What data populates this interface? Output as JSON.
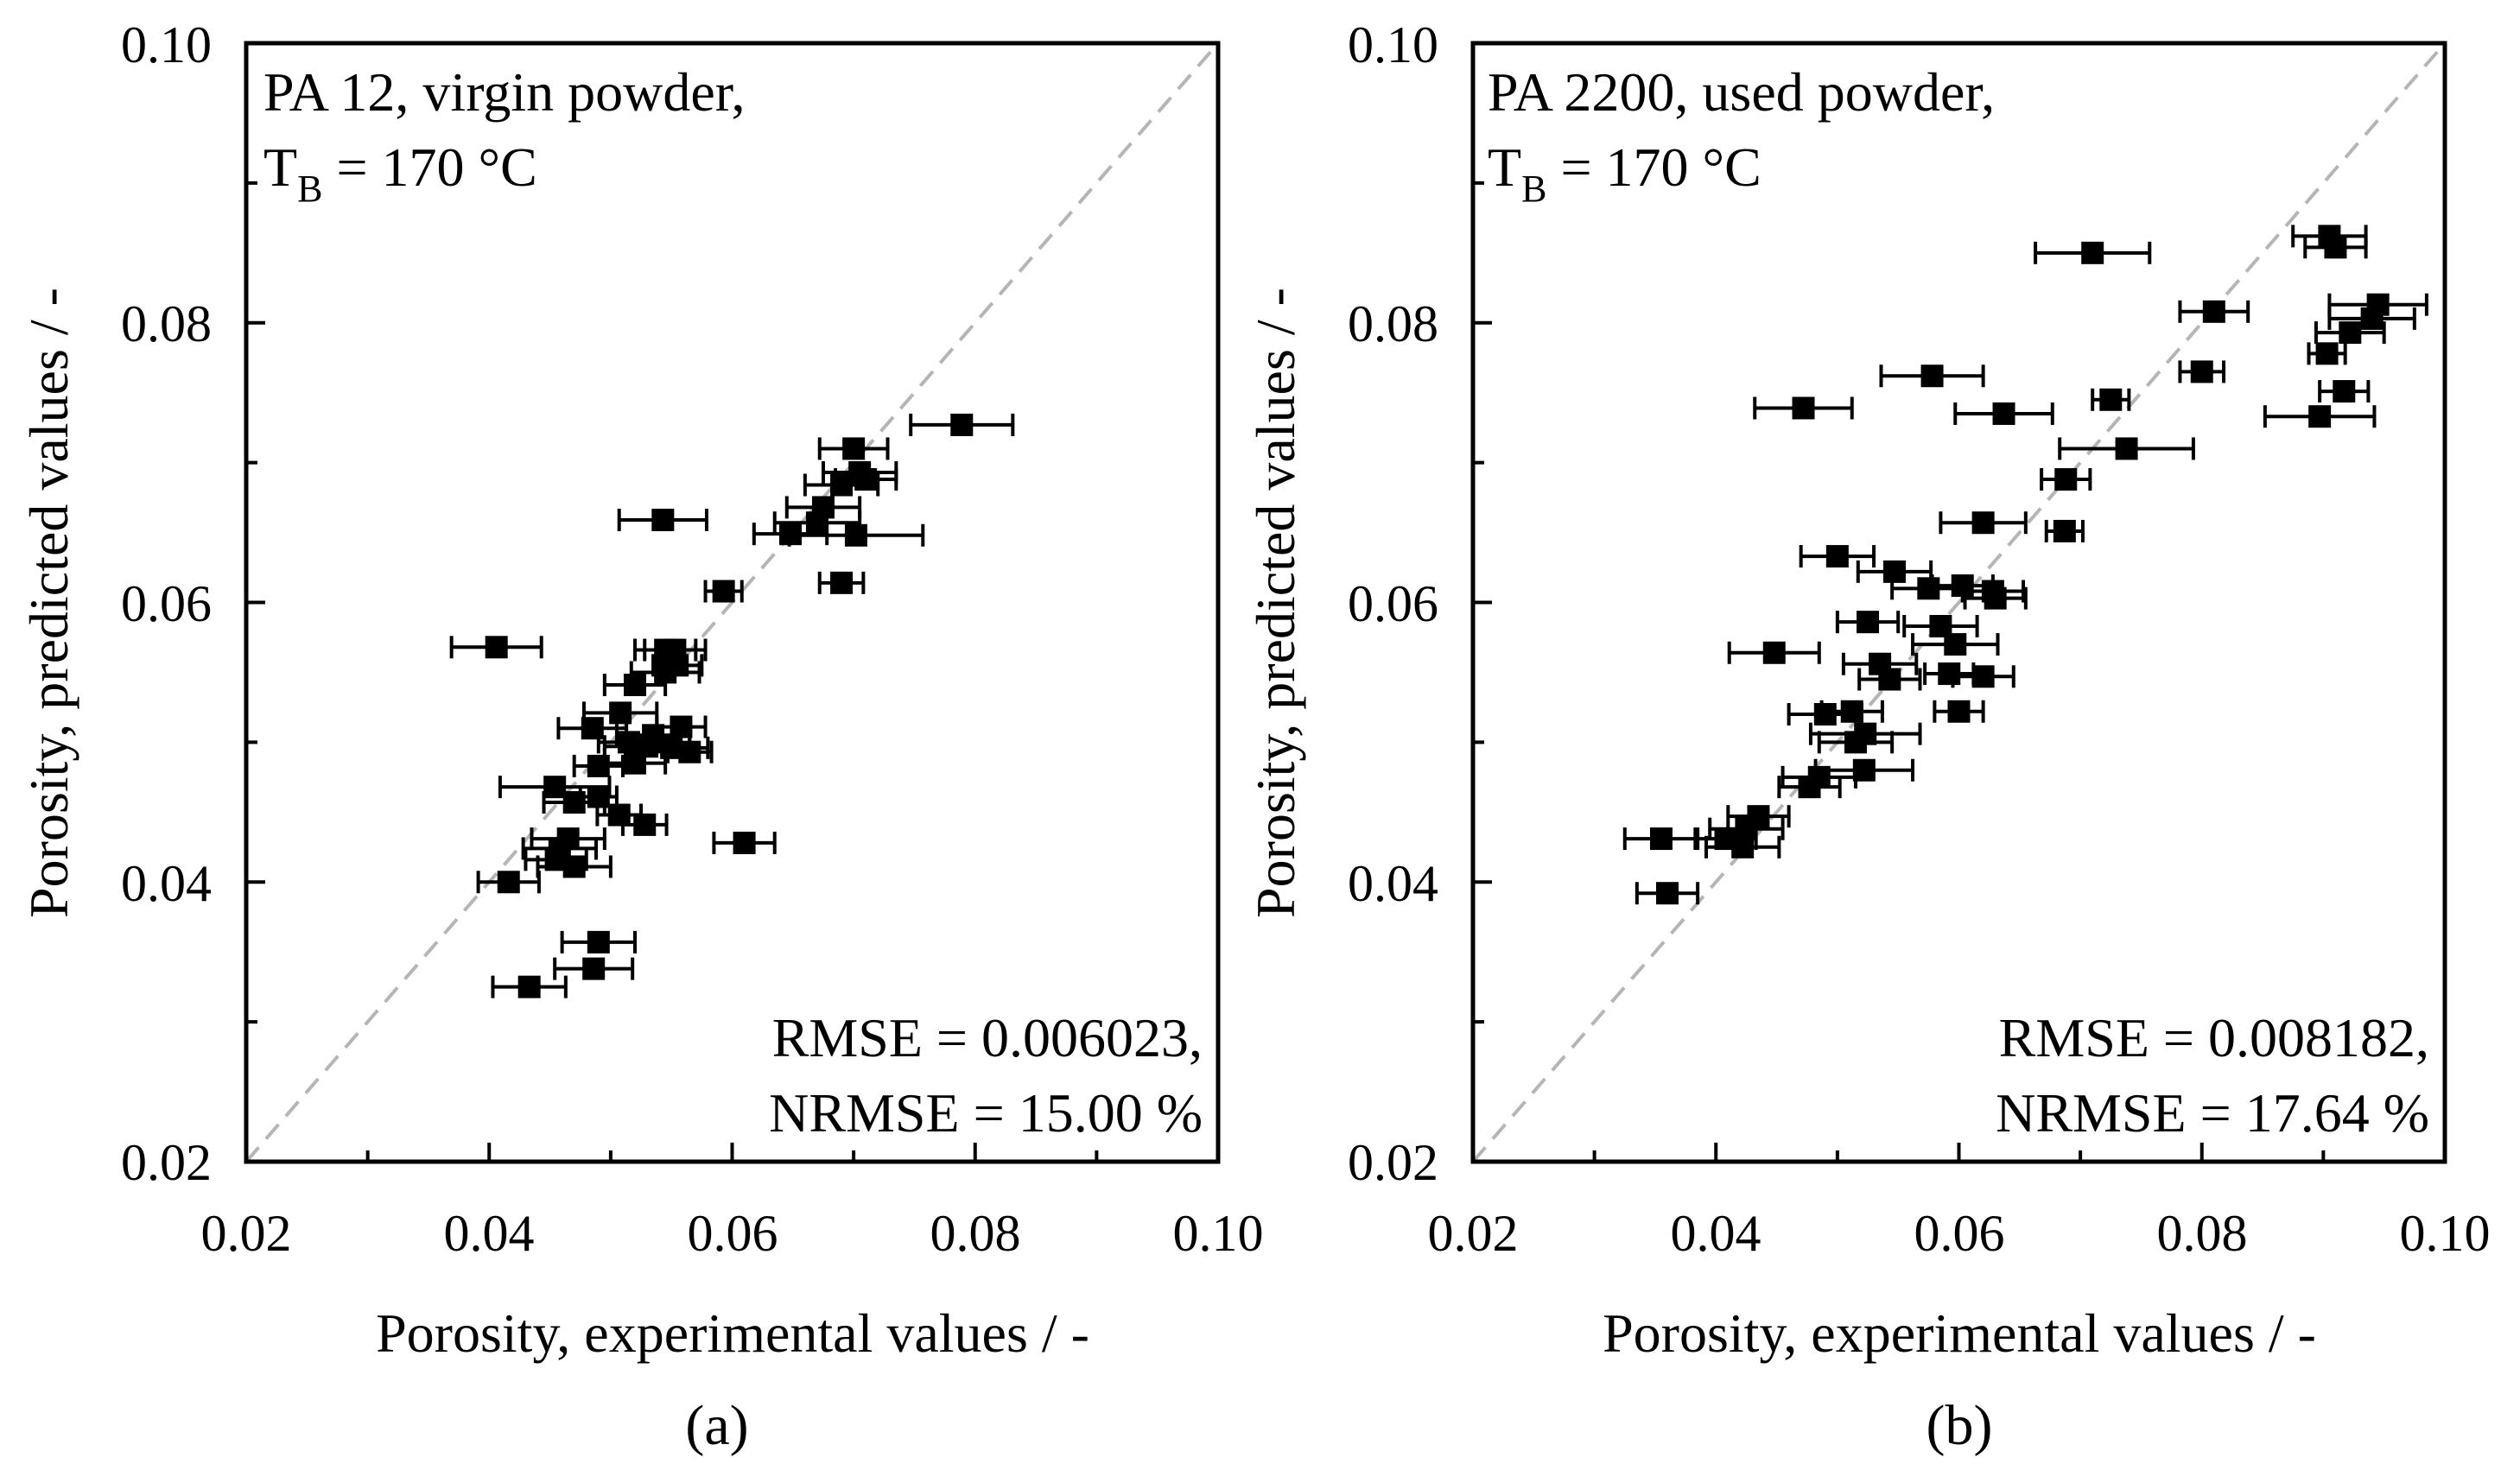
{
  "chart_data": [
    {
      "id": "a",
      "type": "scatter",
      "panel_label": "(a)",
      "title_line1": "PA 12, virgin powder,",
      "title_line2": {
        "main": "T",
        "sub": "B",
        "rest": " = 170 °C"
      },
      "xlabel": "Porosity, experimental values / -",
      "ylabel": "Porosity, predicted values / -",
      "xlim": [
        0.02,
        0.1
      ],
      "ylim": [
        0.02,
        0.1
      ],
      "xticks": [
        "0.02",
        "0.04",
        "0.06",
        "0.08",
        "0.10"
      ],
      "yticks": [
        "0.02",
        "0.04",
        "0.06",
        "0.08",
        "0.10"
      ],
      "reference_line": "y = x",
      "rmse_text": "RMSE = 0.006023,",
      "nrmse_text": "NRMSE = 15.00 %",
      "points": [
        {
          "x": 0.0789,
          "y": 0.0727,
          "xerr": 0.0042
        },
        {
          "x": 0.07,
          "y": 0.071,
          "xerr": 0.0028
        },
        {
          "x": 0.0705,
          "y": 0.0693,
          "xerr": 0.003
        },
        {
          "x": 0.071,
          "y": 0.0688,
          "xerr": 0.0025
        },
        {
          "x": 0.069,
          "y": 0.0684,
          "xerr": 0.003
        },
        {
          "x": 0.0675,
          "y": 0.0668,
          "xerr": 0.003
        },
        {
          "x": 0.067,
          "y": 0.0657,
          "xerr": 0.0035
        },
        {
          "x": 0.0648,
          "y": 0.0649,
          "xerr": 0.003
        },
        {
          "x": 0.0702,
          "y": 0.0648,
          "xerr": 0.0055
        },
        {
          "x": 0.0543,
          "y": 0.0659,
          "xerr": 0.0036
        },
        {
          "x": 0.069,
          "y": 0.0614,
          "xerr": 0.0018
        },
        {
          "x": 0.0593,
          "y": 0.0608,
          "xerr": 0.0015
        },
        {
          "x": 0.0406,
          "y": 0.0568,
          "xerr": 0.0037
        },
        {
          "x": 0.0545,
          "y": 0.0566,
          "xerr": 0.0025
        },
        {
          "x": 0.0553,
          "y": 0.0566,
          "xerr": 0.0025
        },
        {
          "x": 0.0555,
          "y": 0.0555,
          "xerr": 0.002
        },
        {
          "x": 0.0545,
          "y": 0.055,
          "xerr": 0.0028
        },
        {
          "x": 0.052,
          "y": 0.0541,
          "xerr": 0.0025
        },
        {
          "x": 0.0508,
          "y": 0.0521,
          "xerr": 0.003
        },
        {
          "x": 0.0485,
          "y": 0.051,
          "xerr": 0.0028
        },
        {
          "x": 0.0558,
          "y": 0.0511,
          "xerr": 0.002
        },
        {
          "x": 0.0535,
          "y": 0.0505,
          "xerr": 0.003
        },
        {
          "x": 0.0515,
          "y": 0.05,
          "xerr": 0.0025
        },
        {
          "x": 0.053,
          "y": 0.0497,
          "xerr": 0.0035
        },
        {
          "x": 0.055,
          "y": 0.0496,
          "xerr": 0.003
        },
        {
          "x": 0.0565,
          "y": 0.0493,
          "xerr": 0.0018
        },
        {
          "x": 0.052,
          "y": 0.0485,
          "xerr": 0.0025
        },
        {
          "x": 0.049,
          "y": 0.0483,
          "xerr": 0.002
        },
        {
          "x": 0.0454,
          "y": 0.0468,
          "xerr": 0.0045
        },
        {
          "x": 0.047,
          "y": 0.0457,
          "xerr": 0.0025
        },
        {
          "x": 0.049,
          "y": 0.0461,
          "xerr": 0.0015
        },
        {
          "x": 0.0507,
          "y": 0.0448,
          "xerr": 0.0018
        },
        {
          "x": 0.0528,
          "y": 0.0441,
          "xerr": 0.0018
        },
        {
          "x": 0.061,
          "y": 0.0428,
          "xerr": 0.0025
        },
        {
          "x": 0.0465,
          "y": 0.0431,
          "xerr": 0.003
        },
        {
          "x": 0.0458,
          "y": 0.0424,
          "xerr": 0.003
        },
        {
          "x": 0.0455,
          "y": 0.0416,
          "xerr": 0.0025
        },
        {
          "x": 0.047,
          "y": 0.0411,
          "xerr": 0.003
        },
        {
          "x": 0.0416,
          "y": 0.04,
          "xerr": 0.0025
        },
        {
          "x": 0.049,
          "y": 0.0357,
          "xerr": 0.003
        },
        {
          "x": 0.0486,
          "y": 0.0338,
          "xerr": 0.0032
        },
        {
          "x": 0.0433,
          "y": 0.0325,
          "xerr": 0.003
        }
      ]
    },
    {
      "id": "b",
      "type": "scatter",
      "panel_label": "(b)",
      "title_line1": "PA 2200, used powder,",
      "title_line2": {
        "main": "T",
        "sub": "B",
        "rest": " = 170 °C"
      },
      "xlabel": "Porosity, experimental values / -",
      "ylabel": "Porosity, predicted values / -",
      "xlim": [
        0.02,
        0.1
      ],
      "ylim": [
        0.02,
        0.1
      ],
      "xticks": [
        "0.02",
        "0.04",
        "0.06",
        "0.08",
        "0.10"
      ],
      "yticks": [
        "0.02",
        "0.04",
        "0.06",
        "0.08",
        "0.10"
      ],
      "reference_line": "y = x",
      "rmse_text": "RMSE = 0.008182,",
      "nrmse_text": "NRMSE = 17.64 %",
      "points": [
        {
          "x": 0.0905,
          "y": 0.0862,
          "xerr": 0.003
        },
        {
          "x": 0.091,
          "y": 0.0854,
          "xerr": 0.0025
        },
        {
          "x": 0.071,
          "y": 0.085,
          "xerr": 0.0047
        },
        {
          "x": 0.0945,
          "y": 0.0813,
          "xerr": 0.004
        },
        {
          "x": 0.081,
          "y": 0.0808,
          "xerr": 0.0028
        },
        {
          "x": 0.094,
          "y": 0.0803,
          "xerr": 0.0035
        },
        {
          "x": 0.0922,
          "y": 0.0793,
          "xerr": 0.0028
        },
        {
          "x": 0.0903,
          "y": 0.0778,
          "xerr": 0.0015
        },
        {
          "x": 0.0578,
          "y": 0.0762,
          "xerr": 0.0042
        },
        {
          "x": 0.08,
          "y": 0.0765,
          "xerr": 0.0018
        },
        {
          "x": 0.0917,
          "y": 0.0751,
          "xerr": 0.002
        },
        {
          "x": 0.0725,
          "y": 0.0745,
          "xerr": 0.0015
        },
        {
          "x": 0.0472,
          "y": 0.0739,
          "xerr": 0.004
        },
        {
          "x": 0.0637,
          "y": 0.0735,
          "xerr": 0.004
        },
        {
          "x": 0.0897,
          "y": 0.0733,
          "xerr": 0.0045
        },
        {
          "x": 0.0738,
          "y": 0.071,
          "xerr": 0.0055
        },
        {
          "x": 0.0688,
          "y": 0.0688,
          "xerr": 0.002
        },
        {
          "x": 0.062,
          "y": 0.0657,
          "xerr": 0.0035
        },
        {
          "x": 0.0687,
          "y": 0.0651,
          "xerr": 0.0015
        },
        {
          "x": 0.05,
          "y": 0.0633,
          "xerr": 0.003
        },
        {
          "x": 0.0547,
          "y": 0.0622,
          "xerr": 0.003
        },
        {
          "x": 0.0575,
          "y": 0.061,
          "xerr": 0.003
        },
        {
          "x": 0.0603,
          "y": 0.0612,
          "xerr": 0.0025
        },
        {
          "x": 0.0628,
          "y": 0.0608,
          "xerr": 0.0025
        },
        {
          "x": 0.063,
          "y": 0.0603,
          "xerr": 0.0025
        },
        {
          "x": 0.0525,
          "y": 0.0586,
          "xerr": 0.0025
        },
        {
          "x": 0.0585,
          "y": 0.0583,
          "xerr": 0.003
        },
        {
          "x": 0.0597,
          "y": 0.057,
          "xerr": 0.0035
        },
        {
          "x": 0.0448,
          "y": 0.0564,
          "xerr": 0.0037
        },
        {
          "x": 0.0535,
          "y": 0.0556,
          "xerr": 0.003
        },
        {
          "x": 0.0592,
          "y": 0.0549,
          "xerr": 0.002
        },
        {
          "x": 0.062,
          "y": 0.0547,
          "xerr": 0.0025
        },
        {
          "x": 0.0543,
          "y": 0.0545,
          "xerr": 0.0025
        },
        {
          "x": 0.049,
          "y": 0.052,
          "xerr": 0.003
        },
        {
          "x": 0.0512,
          "y": 0.0522,
          "xerr": 0.0025
        },
        {
          "x": 0.06,
          "y": 0.0522,
          "xerr": 0.002
        },
        {
          "x": 0.0523,
          "y": 0.0506,
          "xerr": 0.0045
        },
        {
          "x": 0.0515,
          "y": 0.05,
          "xerr": 0.003
        },
        {
          "x": 0.0522,
          "y": 0.048,
          "xerr": 0.004
        },
        {
          "x": 0.0485,
          "y": 0.0475,
          "xerr": 0.003
        },
        {
          "x": 0.0477,
          "y": 0.0468,
          "xerr": 0.0025
        },
        {
          "x": 0.0435,
          "y": 0.0447,
          "xerr": 0.0025
        },
        {
          "x": 0.0425,
          "y": 0.0438,
          "xerr": 0.003
        },
        {
          "x": 0.0408,
          "y": 0.0431,
          "xerr": 0.0025
        },
        {
          "x": 0.0422,
          "y": 0.0425,
          "xerr": 0.003
        },
        {
          "x": 0.0355,
          "y": 0.0431,
          "xerr": 0.003
        },
        {
          "x": 0.036,
          "y": 0.0392,
          "xerr": 0.0025
        }
      ]
    }
  ]
}
